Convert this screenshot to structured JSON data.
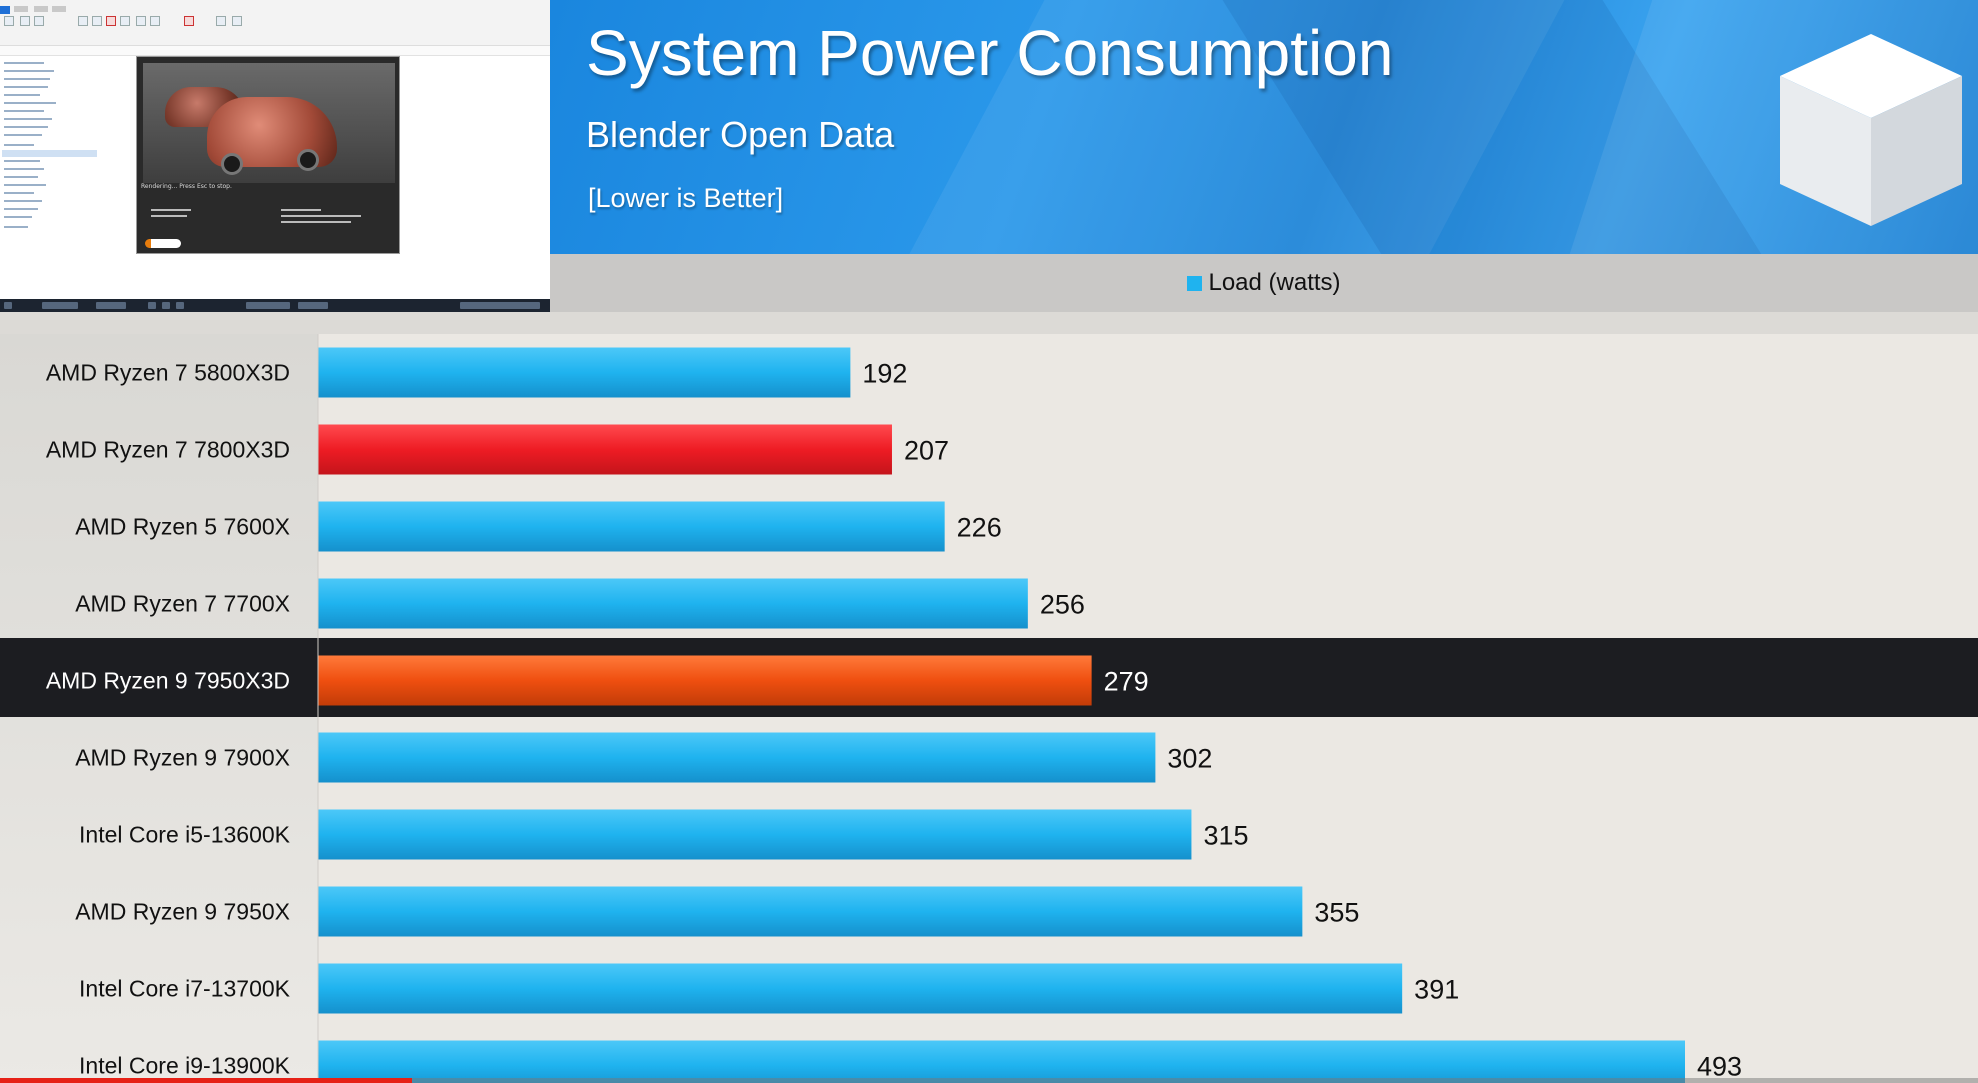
{
  "header": {
    "title": "System Power Consumption",
    "subtitle": "Blender Open Data",
    "note": "[Lower is Better]"
  },
  "inset_video": {
    "render_status": "Rendering... Press Esc to stop."
  },
  "colors": {
    "bar_default": "#1fb3ef",
    "bar_compare": "#ee1c24",
    "bar_highlight": "#ef4f10",
    "highlight_row": "#1c1d21",
    "header_blue": "#2a98ea",
    "progress": "#e62117"
  },
  "chart_data": {
    "type": "bar",
    "orientation": "horizontal",
    "title": "System Power Consumption",
    "subtitle": "Blender Open Data",
    "legend": [
      "Load (watts)"
    ],
    "legend_position": "top",
    "categories": [
      "AMD Ryzen 7 5800X3D",
      "AMD Ryzen 7 7800X3D",
      "AMD Ryzen 5 7600X",
      "AMD Ryzen 7 7700X",
      "AMD Ryzen 9 7950X3D",
      "AMD Ryzen 9 7900X",
      "Intel Core i5-13600K",
      "AMD Ryzen 9 7950X",
      "Intel Core i7-13700K",
      "Intel Core i9-13900K"
    ],
    "series": [
      {
        "name": "Load (watts)",
        "values": [
          192,
          207,
          226,
          256,
          279,
          302,
          315,
          355,
          391,
          493
        ]
      }
    ],
    "highlight_index": 4,
    "compare_index": 1,
    "xlim": [
      0,
      600
    ],
    "grid": false
  }
}
